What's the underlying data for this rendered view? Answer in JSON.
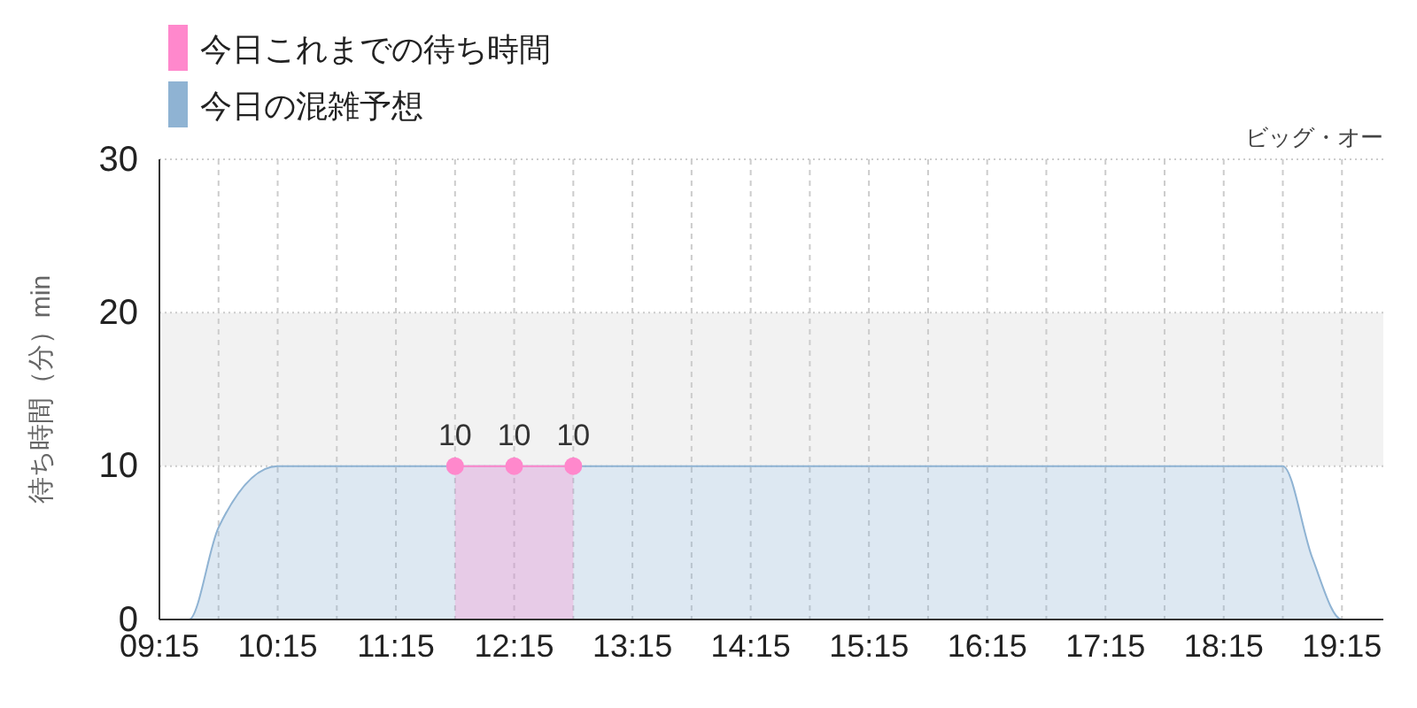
{
  "chart_data": {
    "type": "area",
    "subtitle": "ビッグ・オー",
    "ylabel": "待ち時間（分）min",
    "xlim": [
      9.25,
      19.6
    ],
    "ylim": [
      0,
      30
    ],
    "yticks": [
      0,
      10,
      20,
      30
    ],
    "xticks": [
      {
        "value": 9.25,
        "label": "09:15"
      },
      {
        "value": 9.75,
        "label": null
      },
      {
        "value": 10.25,
        "label": "10:15"
      },
      {
        "value": 10.75,
        "label": null
      },
      {
        "value": 11.25,
        "label": "11:15"
      },
      {
        "value": 11.75,
        "label": null
      },
      {
        "value": 12.25,
        "label": "12:15"
      },
      {
        "value": 12.75,
        "label": null
      },
      {
        "value": 13.25,
        "label": "13:15"
      },
      {
        "value": 13.75,
        "label": null
      },
      {
        "value": 14.25,
        "label": "14:15"
      },
      {
        "value": 14.75,
        "label": null
      },
      {
        "value": 15.25,
        "label": "15:15"
      },
      {
        "value": 15.75,
        "label": null
      },
      {
        "value": 16.25,
        "label": "16:15"
      },
      {
        "value": 16.75,
        "label": null
      },
      {
        "value": 17.25,
        "label": "17:15"
      },
      {
        "value": 17.75,
        "label": null
      },
      {
        "value": 18.25,
        "label": "18:15"
      },
      {
        "value": 18.75,
        "label": null
      },
      {
        "value": 19.25,
        "label": "19:15"
      }
    ],
    "grid": true,
    "legend": "top left",
    "bands": [
      {
        "axis": "y",
        "from": 10,
        "to": 20,
        "color": "#f2f2f2"
      }
    ],
    "series": [
      {
        "name": "今日の混雑予想",
        "color": "#8fb3d3",
        "x": [
          9.25,
          9.5,
          9.75,
          10.25,
          10.75,
          11.25,
          12.25,
          13.25,
          14.25,
          15.25,
          16.25,
          17.25,
          18.25,
          18.75,
          19.0,
          19.25,
          19.6
        ],
        "values": [
          0,
          0,
          6,
          10,
          10,
          10,
          10,
          10,
          10,
          10,
          10,
          10,
          10,
          10,
          4,
          0,
          0
        ]
      },
      {
        "name": "今日これまでの待ち時間",
        "color": "#ff88cc",
        "marker": "circle",
        "x": [
          11.75,
          12.25,
          12.75
        ],
        "values": [
          10,
          10,
          10
        ],
        "value_labels": [
          "10",
          "10",
          "10"
        ]
      }
    ]
  }
}
